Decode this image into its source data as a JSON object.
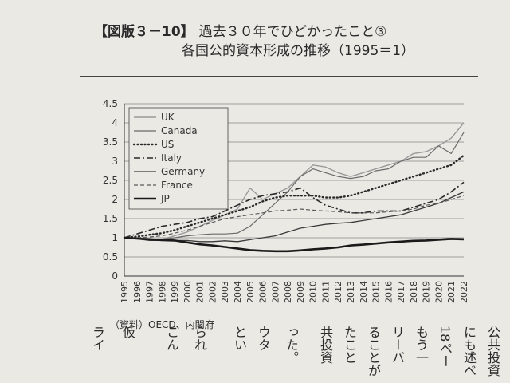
{
  "header": {
    "tag": "【図版３－10】",
    "title": "過去３０年でひどかったこと③",
    "subtitle": "各国公的資本形成の推移（1995＝1）"
  },
  "source": "（資料）OECD、内閣府",
  "body_text": {
    "col1": "公共投資",
    "col2": "にも述べ",
    "col3": "18ペー",
    "col4": "もう一",
    "col5": "リーバ",
    "col6": "ることが",
    "col7": "たこと",
    "col8": "共投資",
    "col9": "った。",
    "col10": "ウタ",
    "col11": "とい",
    "col12": "られ",
    "col13": "こん",
    "col14": "仮",
    "col15": "ライ"
  },
  "chart_data": {
    "type": "line",
    "title": "",
    "xlabel": "",
    "ylabel": "",
    "ylim": [
      0,
      4.5
    ],
    "yticks": [
      "0",
      "0.5",
      "1",
      "1.5",
      "2",
      "2.5",
      "3",
      "3.5",
      "4",
      "4.5"
    ],
    "x": [
      "1995",
      "1996",
      "1997",
      "1998",
      "1999",
      "2000",
      "2001",
      "2002",
      "2003",
      "2004",
      "2005",
      "2006",
      "2007",
      "2008",
      "2009",
      "2010",
      "2011",
      "2012",
      "2013",
      "2014",
      "2015",
      "2016",
      "2017",
      "2018",
      "2019",
      "2020",
      "2021",
      "2022"
    ],
    "grid": true,
    "legend_position": "top-left",
    "series": [
      {
        "name": "UK",
        "style": "solid-light",
        "color": "#9a9a9a",
        "values": [
          1,
          0.98,
          0.95,
          0.96,
          1.05,
          1.15,
          1.3,
          1.45,
          1.6,
          1.75,
          2.3,
          2.0,
          2.15,
          2.3,
          2.6,
          2.9,
          2.85,
          2.7,
          2.6,
          2.7,
          2.8,
          2.9,
          3.0,
          3.2,
          3.25,
          3.4,
          3.6,
          4.0
        ]
      },
      {
        "name": "Canada",
        "style": "solid-mid",
        "color": "#6a6a6a",
        "values": [
          1,
          0.97,
          0.95,
          0.96,
          1.0,
          1.05,
          1.08,
          1.1,
          1.1,
          1.12,
          1.3,
          1.6,
          1.9,
          2.2,
          2.6,
          2.8,
          2.7,
          2.6,
          2.55,
          2.6,
          2.75,
          2.8,
          3.0,
          3.1,
          3.1,
          3.4,
          3.2,
          3.75
        ]
      },
      {
        "name": "US",
        "style": "dotted",
        "color": "#2a2a2a",
        "values": [
          1,
          1.03,
          1.08,
          1.12,
          1.2,
          1.3,
          1.4,
          1.5,
          1.6,
          1.7,
          1.8,
          1.95,
          2.05,
          2.1,
          2.1,
          2.1,
          2.05,
          2.05,
          2.1,
          2.2,
          2.3,
          2.4,
          2.5,
          2.6,
          2.7,
          2.8,
          2.9,
          3.15
        ]
      },
      {
        "name": "Italy",
        "style": "dashdot",
        "color": "#2a2a2a",
        "values": [
          1,
          1.1,
          1.2,
          1.3,
          1.35,
          1.4,
          1.5,
          1.55,
          1.7,
          1.85,
          2.0,
          2.1,
          2.15,
          2.2,
          2.3,
          2.05,
          1.85,
          1.75,
          1.65,
          1.65,
          1.7,
          1.7,
          1.7,
          1.8,
          1.9,
          2.0,
          2.2,
          2.45
        ]
      },
      {
        "name": "Germany",
        "style": "solid-dark",
        "color": "#3a3a3a",
        "values": [
          1,
          0.97,
          0.93,
          0.93,
          0.93,
          0.93,
          0.9,
          0.9,
          0.92,
          0.9,
          0.95,
          1.0,
          1.05,
          1.15,
          1.25,
          1.3,
          1.35,
          1.38,
          1.4,
          1.45,
          1.5,
          1.55,
          1.6,
          1.7,
          1.8,
          1.9,
          2.05,
          2.2
        ]
      },
      {
        "name": "France",
        "style": "dashed",
        "color": "#5a5a5a",
        "values": [
          1,
          1.0,
          1.02,
          1.05,
          1.12,
          1.2,
          1.3,
          1.4,
          1.5,
          1.55,
          1.6,
          1.65,
          1.7,
          1.72,
          1.75,
          1.72,
          1.7,
          1.68,
          1.65,
          1.65,
          1.65,
          1.68,
          1.7,
          1.75,
          1.85,
          1.9,
          2.0,
          2.1
        ]
      },
      {
        "name": "JP",
        "style": "solid-thick",
        "color": "#1a1a1a",
        "values": [
          1,
          0.98,
          0.96,
          0.94,
          0.93,
          0.88,
          0.83,
          0.8,
          0.76,
          0.72,
          0.68,
          0.66,
          0.65,
          0.65,
          0.67,
          0.7,
          0.72,
          0.75,
          0.8,
          0.82,
          0.85,
          0.88,
          0.9,
          0.92,
          0.93,
          0.95,
          0.97,
          0.96
        ]
      }
    ]
  }
}
